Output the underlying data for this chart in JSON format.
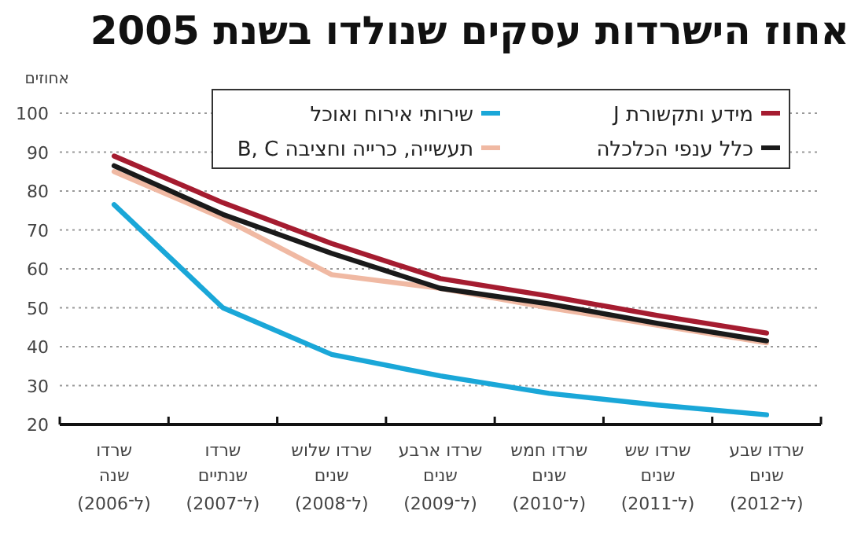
{
  "chart_data": {
    "type": "line",
    "title": "אחוז הישרדות עסקים שנולדו בשנת 2005",
    "ylabel": "אחוזים",
    "categories": [
      "שרדו\nשנה\n(ל־2006)",
      "שרדו\nשנתיים\n(ל־2007)",
      "שרדו שלוש\nשנים\n(ל־2008)",
      "שרדו ארבע\nשנים\n(ל־2009)",
      "שרדו חמש\nשנים\n(ל־2010)",
      "שרדו שש\nשנים\n(ל־2011)",
      "שרדו שבע\nשנים\n(ל־2012)"
    ],
    "series": [
      {
        "name": "מידע ותקשורת J",
        "color": "#a51c30",
        "values": [
          89,
          77,
          66.5,
          57.5,
          53,
          48,
          43.5
        ]
      },
      {
        "name": "כלל ענפי הכלכלה",
        "color": "#1a1a1a",
        "values": [
          86.5,
          74,
          64,
          55,
          51,
          46,
          41.5
        ]
      },
      {
        "name": "שירותי אירוח ואוכל",
        "color": "#1aa7d8",
        "values": [
          76.5,
          50,
          38,
          32.5,
          28,
          25,
          22.5
        ]
      },
      {
        "name": "תעשייה, כרייה וחציבה B, C",
        "color": "#f0b9a3",
        "values": [
          85,
          73,
          58.5,
          55,
          50,
          45.5,
          41
        ]
      }
    ],
    "ylim": [
      20,
      100
    ],
    "yticks": [
      20,
      30,
      40,
      50,
      60,
      70,
      80,
      90,
      100
    ],
    "grid": "y",
    "legend": "top"
  }
}
